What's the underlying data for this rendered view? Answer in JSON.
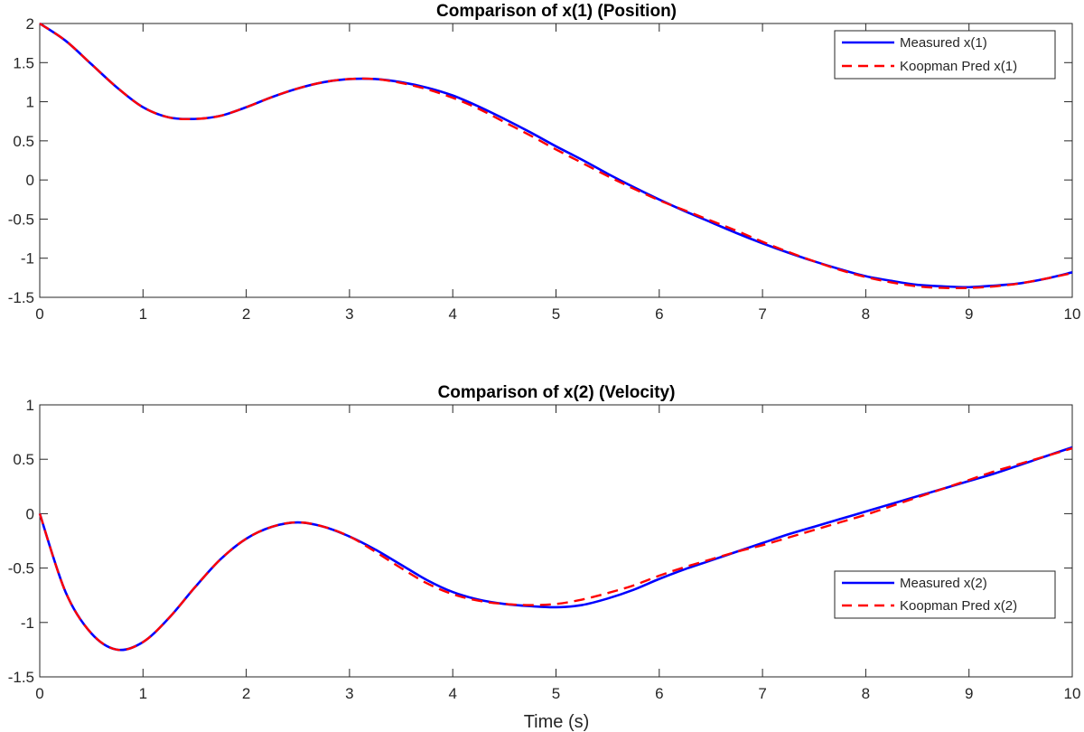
{
  "chart_data": [
    {
      "type": "line",
      "title": "Comparison of x(1) (Position)",
      "xlabel": "",
      "ylabel": "",
      "xlim": [
        0,
        10
      ],
      "ylim": [
        -1.5,
        2
      ],
      "xticks": [
        0,
        1,
        2,
        3,
        4,
        5,
        6,
        7,
        8,
        9,
        10
      ],
      "yticks": [
        -1.5,
        -1,
        -0.5,
        0,
        0.5,
        1,
        1.5,
        2
      ],
      "xtick_labels": [
        "0",
        "1",
        "2",
        "3",
        "4",
        "5",
        "6",
        "7",
        "8",
        "9",
        "10"
      ],
      "ytick_labels": [
        "-1.5",
        "-1",
        "-0.5",
        "0",
        "0.5",
        "1",
        "1.5",
        "2"
      ],
      "grid": false,
      "legend_position": "top-right",
      "x": [
        0,
        0.25,
        0.5,
        0.75,
        1,
        1.25,
        1.5,
        1.75,
        2,
        2.25,
        2.5,
        2.75,
        3,
        3.25,
        3.5,
        3.75,
        4,
        4.25,
        4.5,
        4.75,
        5,
        5.25,
        5.5,
        5.75,
        6,
        6.25,
        6.5,
        6.75,
        7,
        7.25,
        7.5,
        7.75,
        8,
        8.25,
        8.5,
        8.75,
        9,
        9.25,
        9.5,
        9.75,
        10
      ],
      "series": [
        {
          "name": "Measured x(1)",
          "color": "#0000ff",
          "style": "solid",
          "values": [
            2.0,
            1.78,
            1.48,
            1.18,
            0.93,
            0.8,
            0.78,
            0.82,
            0.93,
            1.06,
            1.17,
            1.25,
            1.29,
            1.29,
            1.25,
            1.18,
            1.08,
            0.94,
            0.78,
            0.61,
            0.43,
            0.26,
            0.08,
            -0.09,
            -0.25,
            -0.4,
            -0.54,
            -0.68,
            -0.81,
            -0.93,
            -1.04,
            -1.14,
            -1.23,
            -1.29,
            -1.34,
            -1.36,
            -1.37,
            -1.35,
            -1.32,
            -1.26,
            -1.18
          ]
        },
        {
          "name": "Koopman Pred x(1)",
          "color": "#ff0000",
          "style": "dashed",
          "values": [
            2.0,
            1.78,
            1.48,
            1.18,
            0.93,
            0.8,
            0.78,
            0.82,
            0.93,
            1.06,
            1.17,
            1.25,
            1.29,
            1.29,
            1.24,
            1.16,
            1.05,
            0.91,
            0.74,
            0.57,
            0.39,
            0.22,
            0.05,
            -0.11,
            -0.26,
            -0.39,
            -0.52,
            -0.65,
            -0.79,
            -0.92,
            -1.04,
            -1.15,
            -1.24,
            -1.31,
            -1.36,
            -1.38,
            -1.38,
            -1.36,
            -1.32,
            -1.26,
            -1.19
          ]
        }
      ]
    },
    {
      "type": "line",
      "title": "Comparison of x(2) (Velocity)",
      "xlabel": "Time (s)",
      "ylabel": "",
      "xlim": [
        0,
        10
      ],
      "ylim": [
        -1.5,
        1
      ],
      "xticks": [
        0,
        1,
        2,
        3,
        4,
        5,
        6,
        7,
        8,
        9,
        10
      ],
      "yticks": [
        -1.5,
        -1,
        -0.5,
        0,
        0.5,
        1
      ],
      "xtick_labels": [
        "0",
        "1",
        "2",
        "3",
        "4",
        "5",
        "6",
        "7",
        "8",
        "9",
        "10"
      ],
      "ytick_labels": [
        "-1.5",
        "-1",
        "-0.5",
        "0",
        "0.5",
        "1"
      ],
      "grid": false,
      "legend_position": "bottom-right",
      "x": [
        0,
        0.25,
        0.5,
        0.75,
        1,
        1.25,
        1.5,
        1.75,
        2,
        2.25,
        2.5,
        2.75,
        3,
        3.25,
        3.5,
        3.75,
        4,
        4.25,
        4.5,
        4.75,
        5,
        5.25,
        5.5,
        5.75,
        6,
        6.25,
        6.5,
        6.75,
        7,
        7.25,
        7.5,
        7.75,
        8,
        8.25,
        8.5,
        8.75,
        9,
        9.25,
        9.5,
        9.75,
        10
      ],
      "series": [
        {
          "name": "Measured x(2)",
          "color": "#0000ff",
          "style": "solid",
          "values": [
            0.0,
            -0.72,
            -1.1,
            -1.25,
            -1.18,
            -0.96,
            -0.68,
            -0.42,
            -0.23,
            -0.12,
            -0.08,
            -0.12,
            -0.21,
            -0.33,
            -0.47,
            -0.61,
            -0.72,
            -0.79,
            -0.83,
            -0.85,
            -0.86,
            -0.84,
            -0.78,
            -0.7,
            -0.6,
            -0.51,
            -0.43,
            -0.35,
            -0.27,
            -0.19,
            -0.12,
            -0.05,
            0.02,
            0.09,
            0.16,
            0.23,
            0.3,
            0.37,
            0.45,
            0.53,
            0.61
          ]
        },
        {
          "name": "Koopman Pred x(2)",
          "color": "#ff0000",
          "style": "dashed",
          "values": [
            0.0,
            -0.72,
            -1.1,
            -1.25,
            -1.18,
            -0.96,
            -0.68,
            -0.42,
            -0.23,
            -0.12,
            -0.08,
            -0.12,
            -0.21,
            -0.35,
            -0.5,
            -0.64,
            -0.74,
            -0.8,
            -0.83,
            -0.84,
            -0.83,
            -0.79,
            -0.73,
            -0.66,
            -0.57,
            -0.49,
            -0.42,
            -0.35,
            -0.29,
            -0.22,
            -0.15,
            -0.08,
            -0.01,
            0.07,
            0.15,
            0.23,
            0.31,
            0.39,
            0.46,
            0.53,
            0.6
          ]
        }
      ]
    }
  ]
}
